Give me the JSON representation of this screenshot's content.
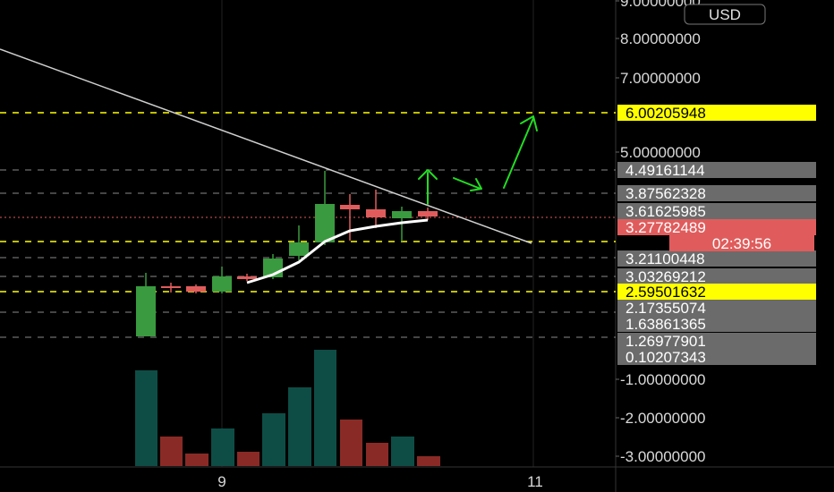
{
  "chart_data": {
    "type": "candlestick",
    "currency_label": "USD",
    "countdown": "02:39:56",
    "x_ticks": [
      "9",
      "11"
    ],
    "y_ticks": [
      "9.00000000",
      "8.00000000",
      "7.00000000",
      "5.00000000",
      "-1.00000000",
      "-2.00000000",
      "-3.00000000"
    ],
    "price_tags": [
      {
        "label": "6.00205948",
        "style": "yellow"
      },
      {
        "label": "4.49161144",
        "style": "gray"
      },
      {
        "label": "3.87562328",
        "style": "gray"
      },
      {
        "label": "3.61625985",
        "style": "gray"
      },
      {
        "label": "3.27782489",
        "style": "red"
      },
      {
        "label": "3.21100448",
        "style": "gray"
      },
      {
        "label": "3.03269212",
        "style": "gray"
      },
      {
        "label": "2.59501632",
        "style": "yellow"
      },
      {
        "label": "2.17355074",
        "style": "gray"
      },
      {
        "label": "1.63861365",
        "style": "gray"
      },
      {
        "label": "1.26977901",
        "style": "gray"
      },
      {
        "label": "0.10207343",
        "style": "gray"
      }
    ],
    "colors": {
      "up": "#3a9a3f",
      "down": "#e05c5c",
      "vol_up": "#0e4d45",
      "vol_down": "#8a2a26",
      "yellow": "#ffff00",
      "arrow": "#22dd22"
    }
  }
}
